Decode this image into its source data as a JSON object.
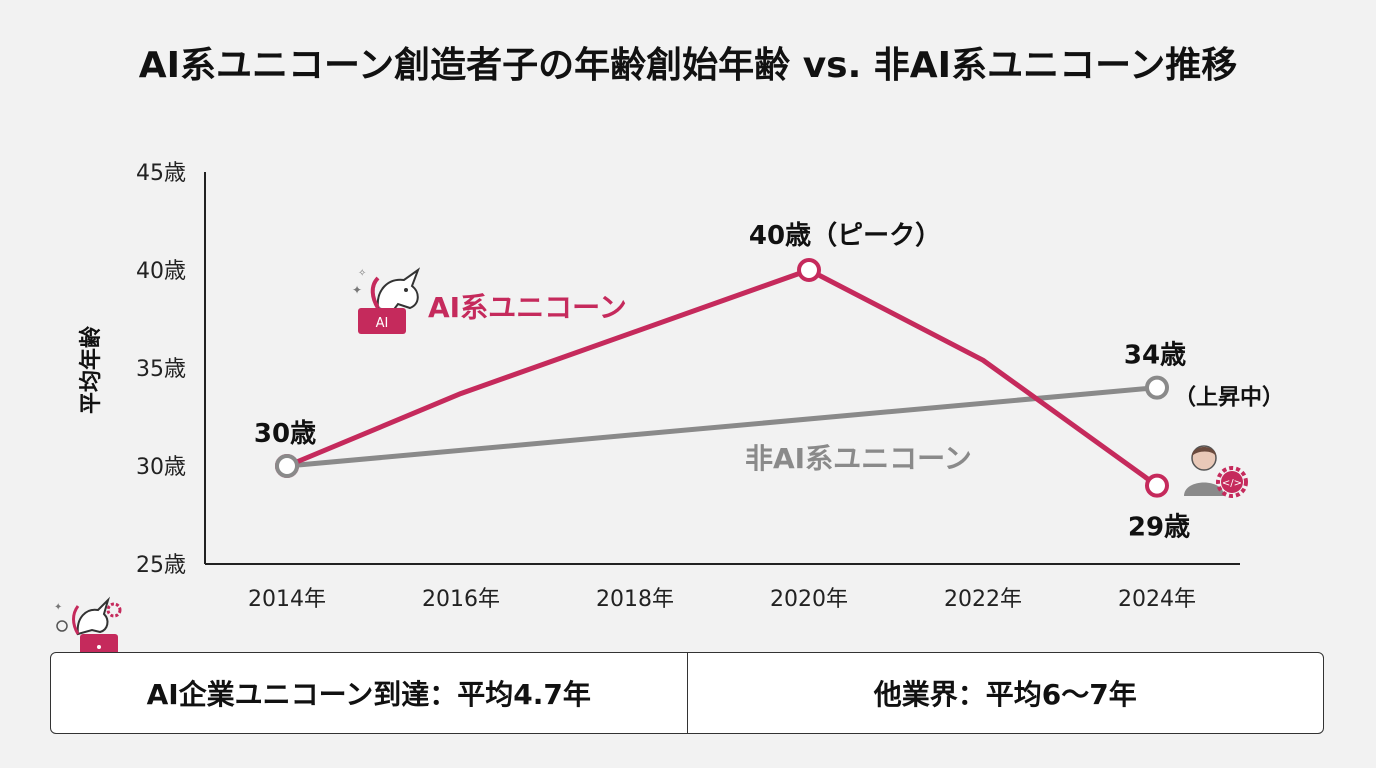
{
  "title": "AI系ユニコーン創造者子の年齢創始年齢 vs. 非AI系ユニコーン推移",
  "colors": {
    "ai_series": "#c52a5c",
    "non_ai_series": "#8a8a8a",
    "axis": "#222222",
    "background": "#f2f2f2"
  },
  "chart_data": {
    "type": "line",
    "ylabel": "平均年齢",
    "xlabel": "",
    "ylim": [
      25,
      45
    ],
    "xlim": [
      2013,
      2026
    ],
    "y_ticks": [
      {
        "value": 25,
        "label": "25歳"
      },
      {
        "value": 30,
        "label": "30歳"
      },
      {
        "value": 35,
        "label": "35歳"
      },
      {
        "value": 40,
        "label": "40歳"
      },
      {
        "value": 45,
        "label": "45歳"
      }
    ],
    "x_ticks": [
      {
        "value": 2014,
        "label": "2014年"
      },
      {
        "value": 2016,
        "label": "2016年"
      },
      {
        "value": 2018,
        "label": "2018年"
      },
      {
        "value": 2020,
        "label": "2020年"
      },
      {
        "value": 2022,
        "label": "2022年"
      },
      {
        "value": 2024,
        "label": "2024年"
      }
    ],
    "series": [
      {
        "name": "AI系ユニコーン",
        "color": "#c52a5c",
        "x": [
          2014,
          2016,
          2020,
          2022,
          2024
        ],
        "y": [
          30,
          33.7,
          40,
          35.4,
          29
        ],
        "markers": [
          2014,
          2020,
          2024
        ]
      },
      {
        "name": "非AI系ユニコーン",
        "color": "#8a8a8a",
        "x": [
          2014,
          2024
        ],
        "y": [
          30,
          34
        ],
        "markers": [
          2014,
          2024
        ]
      }
    ],
    "annotations": [
      {
        "text": "30歳",
        "x": 2014,
        "y": 30
      },
      {
        "text": "40歳（ピーク）",
        "x": 2020,
        "y": 40
      },
      {
        "text": "34歳",
        "x": 2024,
        "y": 34
      },
      {
        "text": "（上昇中）",
        "x": 2024,
        "y": 34
      },
      {
        "text": "29歳",
        "x": 2024,
        "y": 29
      }
    ],
    "grid": false,
    "legend": "inline labels"
  },
  "icons": {
    "ai_unicorn": "unicorn-laptop-icon",
    "ai_unicorn_laptop_text": "AI",
    "person_gear": "person-gear-icon",
    "bottom_unicorn": "unicorn-gear-icon"
  },
  "summary": {
    "ai": "AI企業ユニコーン到達：平均4.7年",
    "other": "他業界：平均6〜7年"
  }
}
